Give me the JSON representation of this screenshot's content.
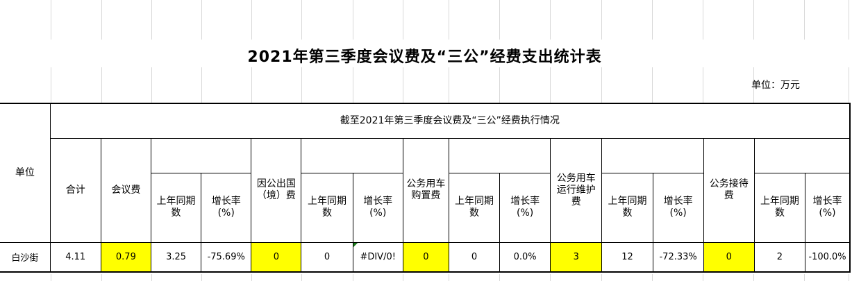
{
  "page": {
    "title": "2021年第三季度会议费及“三公”经费支出统计表",
    "unit_note": "单位：万元"
  },
  "table": {
    "unit_col_header": "单位",
    "banner": "截至2021年第三季度会议费及“三公”经费执行情况",
    "group_headers": {
      "total": "合计",
      "meeting": "会议费",
      "abroad": "因公出国\n（境）费",
      "vehicle_purchase": "公务用车\n购置费",
      "vehicle_maintenance": "公务用车\n运行维护\n费",
      "reception": "公务接待\n费"
    },
    "sub_headers": {
      "prior_year": "上年同期\n数",
      "growth_rate": "增长率\n(%)"
    },
    "data_row": {
      "unit": "白沙街",
      "total": "4.11",
      "meeting": "0.79",
      "meeting_prior": "3.25",
      "meeting_growth": "-75.69%",
      "abroad": "0",
      "abroad_prior": "0",
      "abroad_growth": "#DIV/0!",
      "vehicle_purchase": "0",
      "vehicle_purchase_prior": "0",
      "vehicle_purchase_growth": "0.0%",
      "vehicle_maintenance": "3",
      "vehicle_maintenance_prior": "12",
      "vehicle_maintenance_growth": "-72.33%",
      "reception": "0",
      "reception_prior": "2",
      "reception_growth": "-100.0%"
    }
  },
  "colors": {
    "highlight_yellow": "#FFFF00",
    "error_indicator_green": "#1B7A1B",
    "gridline_gray": "#D8D8D8"
  }
}
